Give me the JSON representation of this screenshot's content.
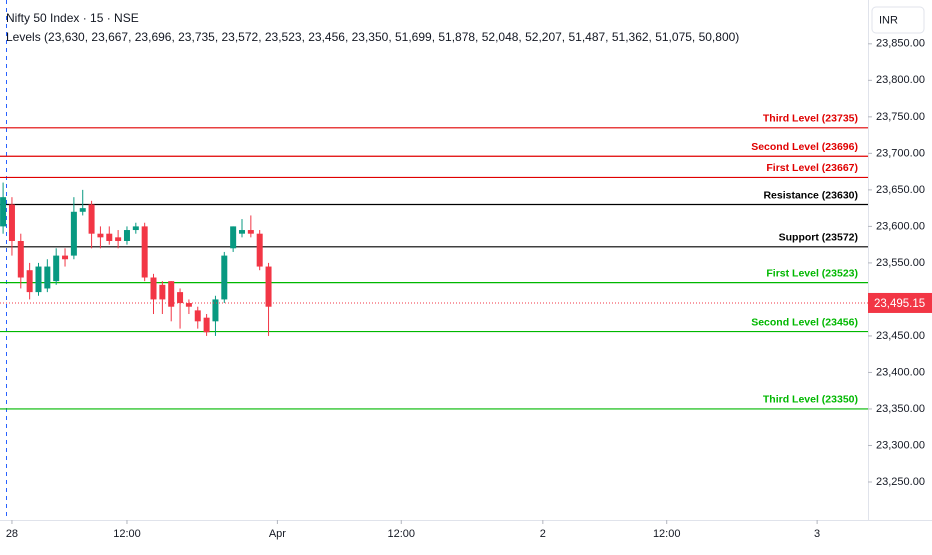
{
  "chart_data": {
    "type": "candlestick",
    "title": "Nifty 50 Index · 15 · NSE",
    "subtitle": "Levels (23,630, 23,667, 23,696, 23,735, 23,572, 23,523, 23,456, 23,350, 51,699, 51,878, 52,048, 52,207, 51,487, 51,362, 51,075, 50,800)",
    "currency": "INR",
    "x": [
      0,
      1,
      2,
      3,
      4,
      5,
      6,
      7,
      8,
      9,
      10,
      11,
      12,
      13,
      14,
      15,
      16,
      17,
      18,
      19,
      20,
      21,
      22,
      23,
      24,
      25,
      26,
      27,
      28,
      29,
      30
    ],
    "open": [
      23600,
      23630,
      23580,
      23540,
      23510,
      23515,
      23525,
      23560,
      23560,
      23620,
      23630,
      23590,
      23590,
      23585,
      23580,
      23595,
      23600,
      23530,
      23520,
      23525,
      23510,
      23495,
      23485,
      23475,
      23470,
      23500,
      23570,
      23590,
      23595,
      23590,
      23545
    ],
    "high": [
      23660,
      23640,
      23590,
      23550,
      23550,
      23555,
      23570,
      23570,
      23640,
      23650,
      23635,
      23600,
      23600,
      23595,
      23600,
      23605,
      23605,
      23535,
      23525,
      23525,
      23515,
      23500,
      23490,
      23480,
      23505,
      23565,
      23600,
      23610,
      23615,
      23595,
      23550
    ],
    "low": [
      23590,
      23560,
      23515,
      23500,
      23505,
      23510,
      23520,
      23545,
      23555,
      23615,
      23570,
      23570,
      23575,
      23570,
      23575,
      23590,
      23525,
      23480,
      23480,
      23470,
      23460,
      23480,
      23460,
      23450,
      23450,
      23495,
      23565,
      23585,
      23585,
      23540,
      23450
    ],
    "close": [
      23640,
      23580,
      23530,
      23510,
      23545,
      23545,
      23560,
      23555,
      23620,
      23625,
      23590,
      23585,
      23580,
      23580,
      23595,
      23600,
      23530,
      23500,
      23500,
      23490,
      23495,
      23490,
      23470,
      23455,
      23500,
      23560,
      23600,
      23595,
      23590,
      23545,
      23490
    ],
    "up_color": "#089981",
    "down_color": "#f23645",
    "xlim": [
      -0.35,
      97.75
    ],
    "xticks": [
      {
        "value": 1,
        "label": "28"
      },
      {
        "value": 14,
        "label": "12:00"
      },
      {
        "value": 31,
        "label": "Apr"
      },
      {
        "value": 45,
        "label": "12:00"
      },
      {
        "value": 61,
        "label": "2"
      },
      {
        "value": 75,
        "label": "12:00"
      },
      {
        "value": 92,
        "label": "3"
      }
    ],
    "ylim": [
      23200,
      23910
    ],
    "yticks": [
      {
        "value": 23250,
        "label": "23,250.00"
      },
      {
        "value": 23300,
        "label": "23,300.00"
      },
      {
        "value": 23350,
        "label": "23,350.00"
      },
      {
        "value": 23400,
        "label": "23,400.00"
      },
      {
        "value": 23450,
        "label": "23,450.00"
      },
      {
        "value": 23500,
        "label": "23,500.00"
      },
      {
        "value": 23550,
        "label": "23,550.00"
      },
      {
        "value": 23600,
        "label": "23,600.00"
      },
      {
        "value": 23650,
        "label": "23,650.00"
      },
      {
        "value": 23700,
        "label": "23,700.00"
      },
      {
        "value": 23750,
        "label": "23,750.00"
      },
      {
        "value": 23800,
        "label": "23,800.00"
      },
      {
        "value": 23850,
        "label": "23,850.00"
      }
    ],
    "levels": [
      {
        "label": "Third Level (23735)",
        "value": 23735,
        "color": "#e00000"
      },
      {
        "label": "Second Level (23696)",
        "value": 23696,
        "color": "#e00000"
      },
      {
        "label": "First Level (23667)",
        "value": 23667,
        "color": "#e00000"
      },
      {
        "label": "Resistance (23630)",
        "value": 23630,
        "color": "#000000"
      },
      {
        "label": "Support (23572)",
        "value": 23572,
        "color": "#000000"
      },
      {
        "label": "First Level (23523)",
        "value": 23523,
        "color": "#00b800"
      },
      {
        "label": "Second Level (23456)",
        "value": 23456,
        "color": "#00b800"
      },
      {
        "label": "Third Level (23350)",
        "value": 23350,
        "color": "#00b800"
      }
    ],
    "last_price": {
      "value": 23495.15,
      "label": "23,495.15",
      "color": "#f23645"
    }
  }
}
